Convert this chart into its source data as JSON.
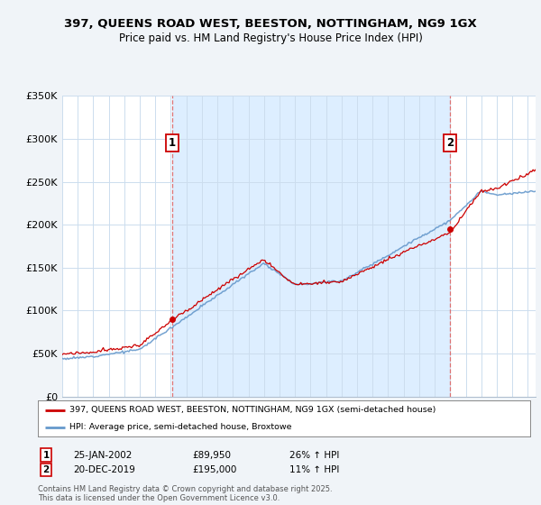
{
  "title1": "397, QUEENS ROAD WEST, BEESTON, NOTTINGHAM, NG9 1GX",
  "title2": "Price paid vs. HM Land Registry's House Price Index (HPI)",
  "ylim": [
    0,
    350000
  ],
  "yticks": [
    0,
    50000,
    100000,
    150000,
    200000,
    250000,
    300000,
    350000
  ],
  "ytick_labels": [
    "£0",
    "£50K",
    "£100K",
    "£150K",
    "£200K",
    "£250K",
    "£300K",
    "£350K"
  ],
  "start_year": 1995,
  "end_year": 2025,
  "sale1_year": 2002.07,
  "sale1_price": 89950,
  "sale2_year": 2019.97,
  "sale2_price": 195000,
  "legend_line1": "397, QUEENS ROAD WEST, BEESTON, NOTTINGHAM, NG9 1GX (semi-detached house)",
  "legend_line2": "HPI: Average price, semi-detached house, Broxtowe",
  "footer": "Contains HM Land Registry data © Crown copyright and database right 2025.\nThis data is licensed under the Open Government Licence v3.0.",
  "line_color_red": "#cc0000",
  "line_color_blue": "#6699cc",
  "shade_color": "#ddeeff",
  "background_color": "#f0f4f8",
  "plot_bg_color": "#ffffff",
  "grid_color": "#ccddee",
  "vline_color": "#dd6666",
  "ann1_date": "25-JAN-2002",
  "ann1_price": "£89,950",
  "ann1_hpi": "26% ↑ HPI",
  "ann2_date": "20-DEC-2019",
  "ann2_price": "£195,000",
  "ann2_hpi": "11% ↑ HPI"
}
